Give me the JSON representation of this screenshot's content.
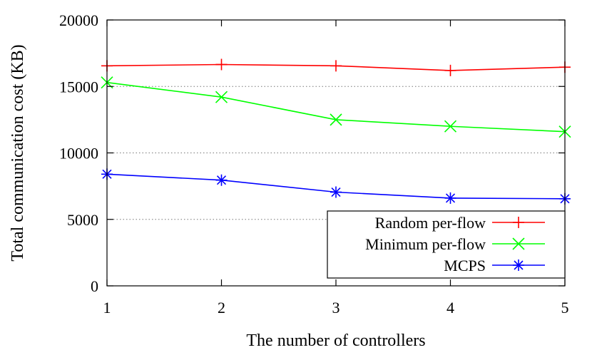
{
  "chart_data": {
    "type": "line",
    "title": "",
    "xlabel": "The number of controllers",
    "ylabel": "Total communication cost (KB)",
    "x": [
      1,
      2,
      3,
      4,
      5
    ],
    "x_tick_labels": [
      "1",
      "2",
      "3",
      "4",
      "5"
    ],
    "xlim": [
      1,
      5
    ],
    "ylim": [
      0,
      20000
    ],
    "y_ticks": [
      0,
      5000,
      10000,
      15000,
      20000
    ],
    "y_tick_labels": [
      "0",
      "5000",
      "10000",
      "15000",
      "20000"
    ],
    "grid": "horizontal dotted",
    "legend_position": "bottom-right",
    "series": [
      {
        "name": "Random per-flow",
        "color": "#ff0000",
        "marker": "plus",
        "values": [
          16550,
          16650,
          16550,
          16200,
          16450
        ]
      },
      {
        "name": "Minimum per-flow",
        "color": "#00ff00",
        "marker": "cross",
        "values": [
          15300,
          14200,
          12500,
          12000,
          11600
        ]
      },
      {
        "name": "MCPS",
        "color": "#0000ff",
        "marker": "star",
        "values": [
          8400,
          7950,
          7050,
          6600,
          6550
        ]
      }
    ]
  }
}
